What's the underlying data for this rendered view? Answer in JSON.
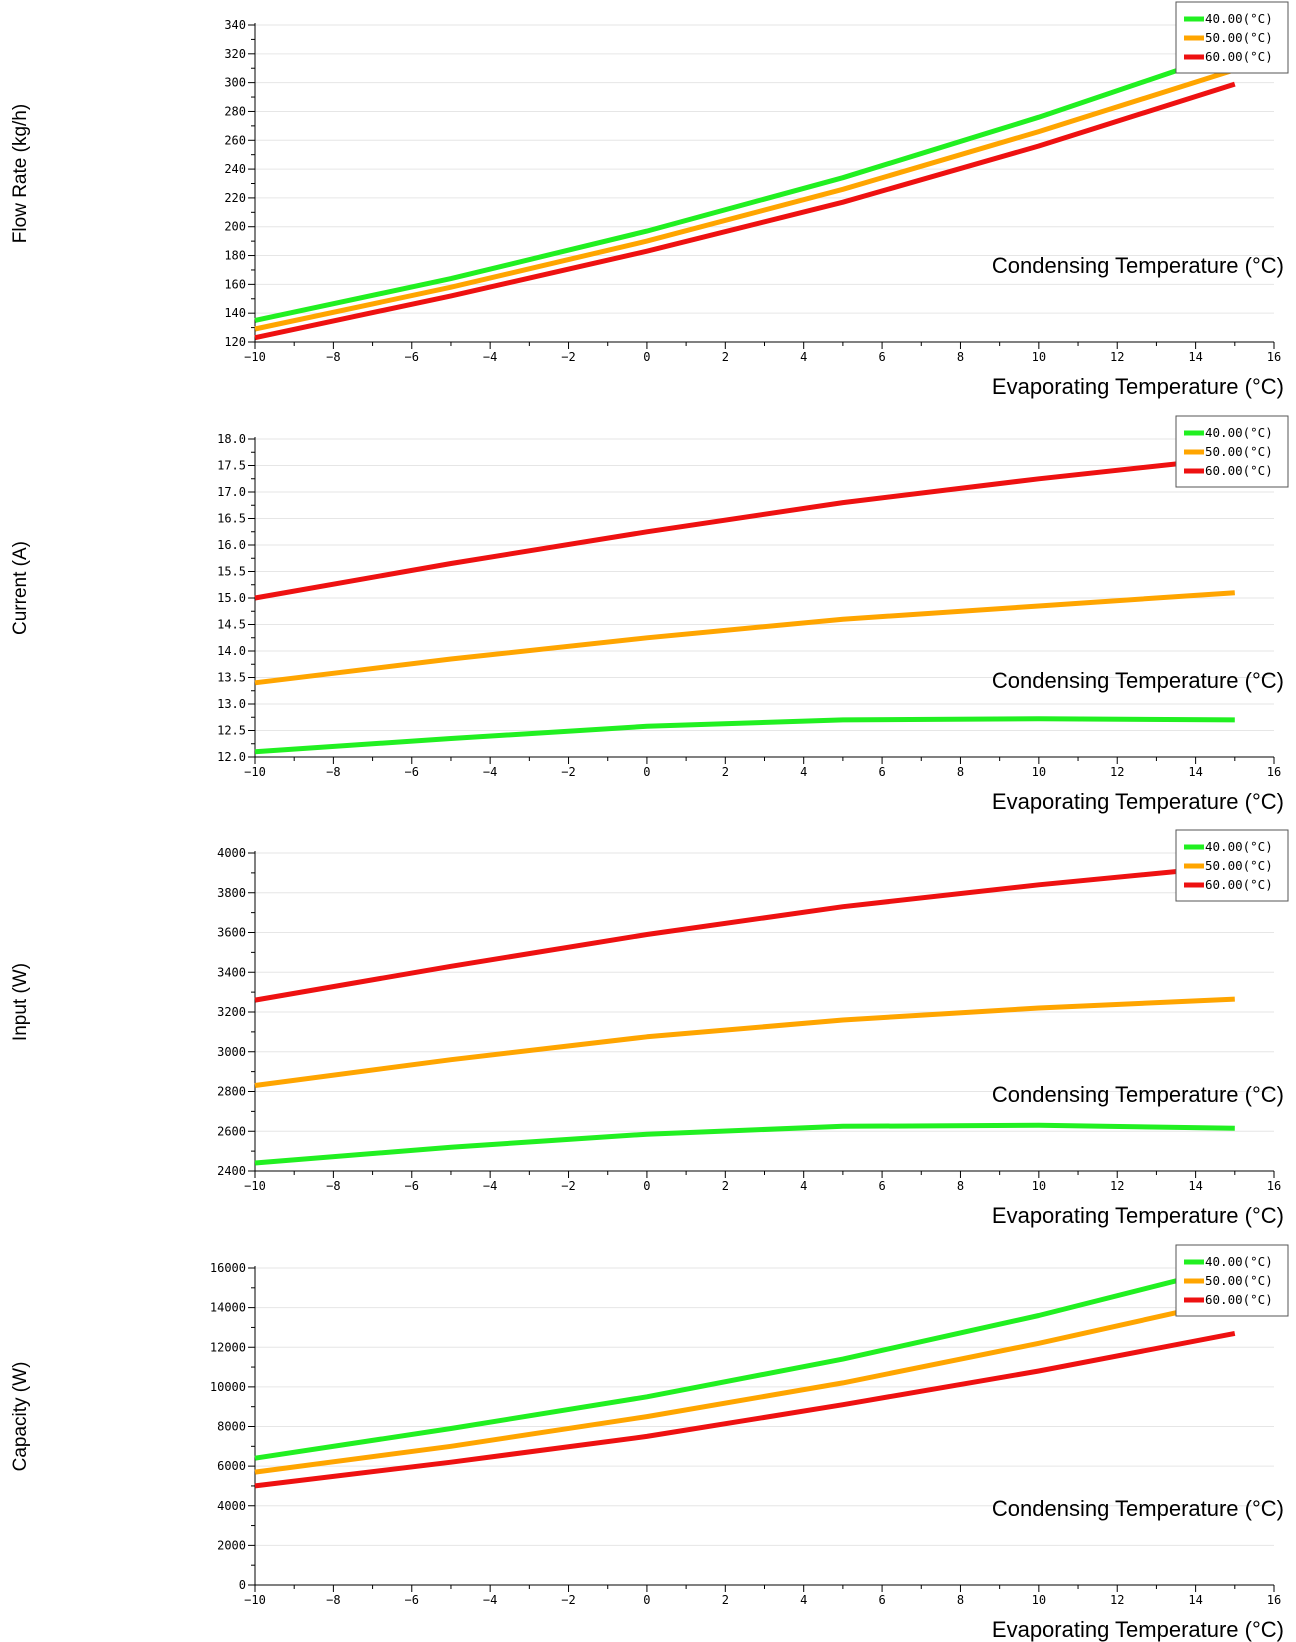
{
  "colors": {
    "c40": "#21f021",
    "c50": "#ffa500",
    "c60": "#ee1111",
    "grid": "#e6e6e6"
  },
  "chart_data": [
    {
      "type": "line",
      "ylabel": "Flow Rate (kg/h)",
      "xlabel": "Evaporating Temperature (°C)",
      "legend_title": "Condensing Temperature (°C)",
      "legend_position": "top-right",
      "grid": true,
      "xlim": [
        -10,
        16
      ],
      "ylim": [
        120,
        340
      ],
      "xticks": [
        "−10",
        "−8",
        "−6",
        "−4",
        "−2",
        "0",
        "2",
        "4",
        "6",
        "8",
        "10",
        "12",
        "14",
        "16"
      ],
      "yticks": [
        "120",
        "140",
        "160",
        "180",
        "200",
        "220",
        "240",
        "260",
        "280",
        "300",
        "320",
        "340"
      ],
      "x": [
        -10,
        -5,
        0,
        5,
        10,
        15
      ],
      "series": [
        {
          "name": "40.00(°C)",
          "color": "#21f021",
          "values": [
            135,
            164,
            197,
            234,
            276,
            322
          ]
        },
        {
          "name": "50.00(°C)",
          "color": "#ffa500",
          "values": [
            129,
            158,
            190,
            226,
            266,
            309
          ]
        },
        {
          "name": "60.00(°C)",
          "color": "#ee1111",
          "values": [
            123,
            152,
            183,
            217,
            256,
            299
          ]
        }
      ]
    },
    {
      "type": "line",
      "ylabel": "Current (A)",
      "xlabel": "Evaporating Temperature (°C)",
      "legend_title": "Condensing Temperature (°C)",
      "legend_position": "top-right",
      "grid": true,
      "xlim": [
        -10,
        16
      ],
      "ylim": [
        12.0,
        18.0
      ],
      "xticks": [
        "−10",
        "−8",
        "−6",
        "−4",
        "−2",
        "0",
        "2",
        "4",
        "6",
        "8",
        "10",
        "12",
        "14",
        "16"
      ],
      "yticks": [
        "12.0",
        "12.5",
        "13.0",
        "13.5",
        "14.0",
        "14.5",
        "15.0",
        "15.5",
        "16.0",
        "16.5",
        "17.0",
        "17.5",
        "18.0"
      ],
      "x": [
        -10,
        -5,
        0,
        5,
        10,
        15
      ],
      "series": [
        {
          "name": "40.00(°C)",
          "color": "#21f021",
          "values": [
            12.1,
            12.35,
            12.58,
            12.7,
            12.72,
            12.7
          ]
        },
        {
          "name": "50.00(°C)",
          "color": "#ffa500",
          "values": [
            13.4,
            13.85,
            14.25,
            14.6,
            14.85,
            15.1
          ]
        },
        {
          "name": "60.00(°C)",
          "color": "#ee1111",
          "values": [
            15.0,
            15.65,
            16.25,
            16.8,
            17.25,
            17.65
          ]
        }
      ]
    },
    {
      "type": "line",
      "ylabel": "Input (W)",
      "xlabel": "Evaporating Temperature (°C)",
      "legend_title": "Condensing Temperature (°C)",
      "legend_position": "top-right",
      "grid": true,
      "xlim": [
        -10,
        16
      ],
      "ylim": [
        2400,
        4000
      ],
      "xticks": [
        "−10",
        "−8",
        "−6",
        "−4",
        "−2",
        "0",
        "2",
        "4",
        "6",
        "8",
        "10",
        "12",
        "14",
        "16"
      ],
      "yticks": [
        "2400",
        "2600",
        "2800",
        "3000",
        "3200",
        "3400",
        "3600",
        "3800",
        "4000"
      ],
      "x": [
        -10,
        -5,
        0,
        5,
        10,
        15
      ],
      "series": [
        {
          "name": "40.00(°C)",
          "color": "#21f021",
          "values": [
            2440,
            2520,
            2585,
            2625,
            2630,
            2615
          ]
        },
        {
          "name": "50.00(°C)",
          "color": "#ffa500",
          "values": [
            2830,
            2960,
            3075,
            3160,
            3220,
            3265
          ]
        },
        {
          "name": "60.00(°C)",
          "color": "#ee1111",
          "values": [
            3260,
            3430,
            3590,
            3730,
            3840,
            3935
          ]
        }
      ]
    },
    {
      "type": "line",
      "ylabel": "Capacity (W)",
      "xlabel": "Evaporating Temperature (°C)",
      "legend_title": "Condensing Temperature (°C)",
      "legend_position": "top-right",
      "grid": true,
      "xlim": [
        -10,
        16
      ],
      "ylim": [
        0,
        16000
      ],
      "xticks": [
        "−10",
        "−8",
        "−6",
        "−4",
        "−2",
        "0",
        "2",
        "4",
        "6",
        "8",
        "10",
        "12",
        "14",
        "16"
      ],
      "yticks": [
        "0",
        "2000",
        "4000",
        "6000",
        "8000",
        "10000",
        "12000",
        "14000",
        "16000"
      ],
      "x": [
        -10,
        -5,
        0,
        5,
        10,
        15
      ],
      "series": [
        {
          "name": "40.00(°C)",
          "color": "#21f021",
          "values": [
            6400,
            7900,
            9500,
            11400,
            13600,
            16100
          ]
        },
        {
          "name": "50.00(°C)",
          "color": "#ffa500",
          "values": [
            5700,
            7000,
            8500,
            10200,
            12200,
            14400
          ]
        },
        {
          "name": "60.00(°C)",
          "color": "#ee1111",
          "values": [
            5000,
            6200,
            7500,
            9100,
            10800,
            12700
          ]
        }
      ]
    }
  ]
}
